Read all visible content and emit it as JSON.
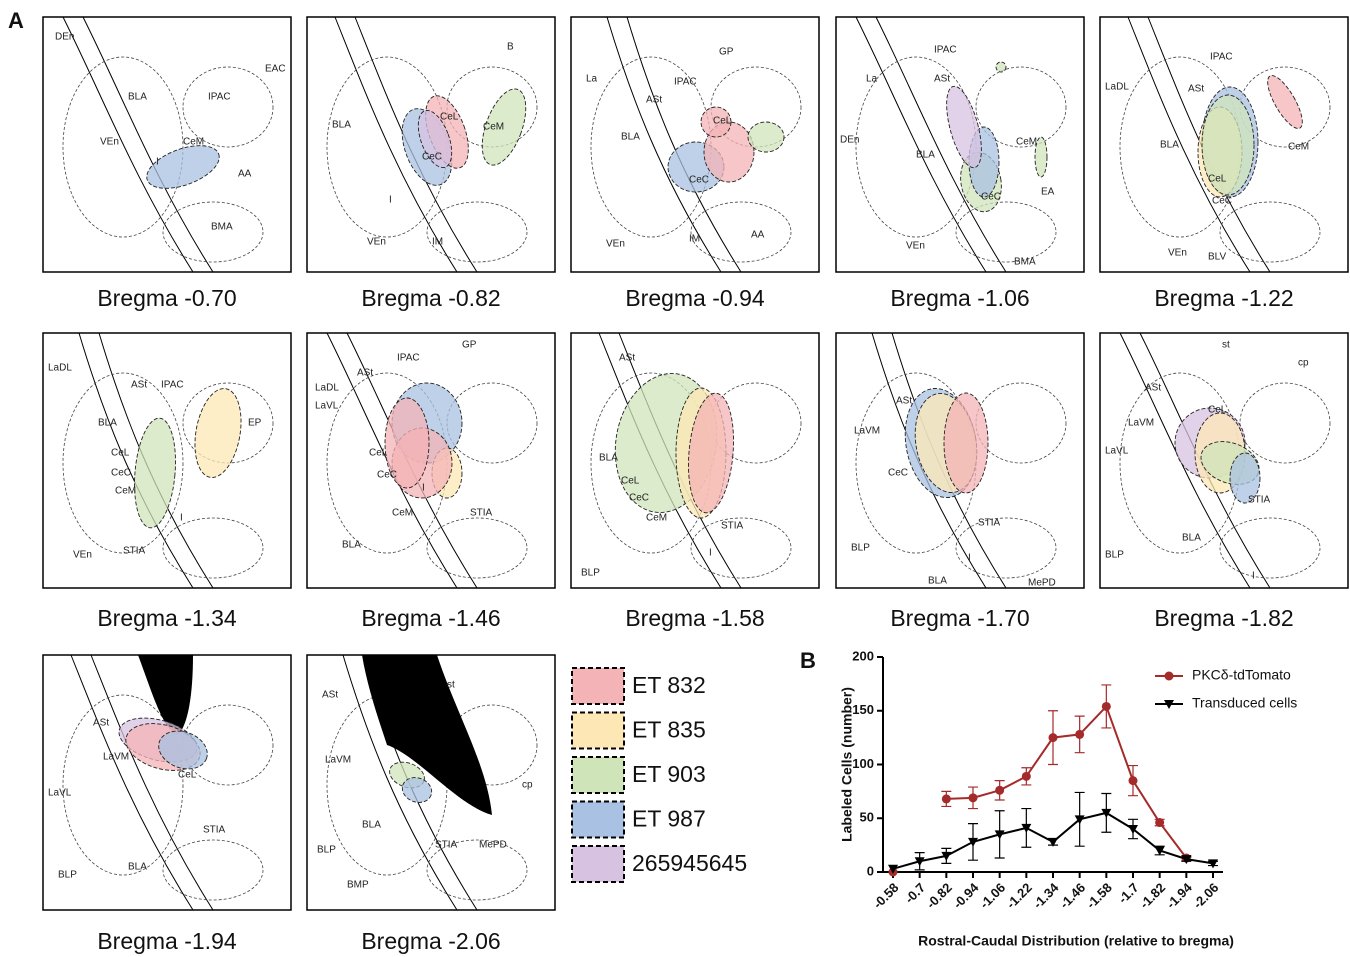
{
  "figure": {
    "panel_a_label": "A",
    "panel_b_label": "B",
    "sections": [
      {
        "caption": "Bregma -0.70",
        "labels": [
          "DEn",
          "BLA",
          "IPAC",
          "EAC",
          "VEn",
          "CeM",
          "I",
          "AA",
          "BMA"
        ]
      },
      {
        "caption": "Bregma -0.82",
        "labels": [
          "B",
          "BLA",
          "CeL",
          "CeM",
          "CeC",
          "VEn",
          "IM",
          "I"
        ]
      },
      {
        "caption": "Bregma -0.94",
        "labels": [
          "GP",
          "La",
          "IPAC",
          "ASt",
          "CeL",
          "BLA",
          "CeC",
          "VEn",
          "IM",
          "AA"
        ]
      },
      {
        "caption": "Bregma -1.06",
        "labels": [
          "IPAC",
          "La",
          "ASt",
          "DEn",
          "BLA",
          "CeM",
          "CeC",
          "EA",
          "VEn",
          "BMA"
        ]
      },
      {
        "caption": "Bregma -1.22",
        "labels": [
          "IPAC",
          "LaDL",
          "ASt",
          "BLA",
          "CeM",
          "CeL",
          "CeC",
          "VEn",
          "BLV"
        ]
      },
      {
        "caption": "Bregma -1.34",
        "labels": [
          "LaDL",
          "ASt",
          "IPAC",
          "EP",
          "BLA",
          "CeL",
          "CeC",
          "CeM",
          "I",
          "VEn",
          "STIA"
        ]
      },
      {
        "caption": "Bregma -1.46",
        "labels": [
          "GP",
          "IPAC",
          "ASt",
          "LaDL",
          "LaVL",
          "CeL",
          "CeC",
          "CeM",
          "I",
          "BLA",
          "STIA"
        ]
      },
      {
        "caption": "Bregma -1.58",
        "labels": [
          "ASt",
          "BLA",
          "CeL",
          "CeC",
          "CeM",
          "STIA",
          "I",
          "BLP"
        ]
      },
      {
        "caption": "Bregma -1.70",
        "labels": [
          "ASt",
          "LaVM",
          "CeC",
          "STIA",
          "BLP",
          "BLA",
          "I",
          "MePD"
        ]
      },
      {
        "caption": "Bregma -1.82",
        "labels": [
          "st",
          "cp",
          "ASt",
          "LaVM",
          "LaVL",
          "CeL",
          "STIA",
          "BLA",
          "BLP",
          "I"
        ]
      },
      {
        "caption": "Bregma -1.94",
        "labels": [
          "ASt",
          "LaVM",
          "LaVL",
          "CeL",
          "STIA",
          "BLP",
          "BLA"
        ]
      },
      {
        "caption": "Bregma -2.06",
        "labels": [
          "ASt",
          "st",
          "LaVM",
          "cp",
          "BLA",
          "STIA",
          "BLP",
          "MePD",
          "BMP"
        ]
      }
    ],
    "legend": [
      {
        "name": "ET 832",
        "color": "#f4b3b6"
      },
      {
        "name": "ET 835",
        "color": "#fde8b5"
      },
      {
        "name": "ET 903",
        "color": "#cfe4b9"
      },
      {
        "name": "ET 987",
        "color": "#a9c1e2"
      },
      {
        "name": "265945645",
        "color": "#d7c2e2"
      }
    ]
  },
  "chart_data": {
    "type": "line",
    "x_label": "Rostral-Caudal Distribution (relative to bregma)",
    "y_label": "Labeled Cells (number)",
    "categories": [
      "-0.58",
      "-0.7",
      "-0.82",
      "-0.94",
      "-1.06",
      "-1.22",
      "-1.34",
      "-1.46",
      "-1.58",
      "-1.7",
      "-1.82",
      "-1.94",
      "-2.06"
    ],
    "ylim": [
      0,
      200
    ],
    "yticks": [
      0,
      50,
      100,
      150,
      200
    ],
    "series": [
      {
        "name": "PKCδ-tdTomato",
        "color": "#a52a2a",
        "marker": "circle",
        "values": [
          0,
          null,
          68,
          69,
          76,
          89,
          125,
          128,
          154,
          85,
          46,
          13,
          null
        ],
        "errors": [
          null,
          null,
          7,
          10,
          9,
          8,
          25,
          17,
          20,
          14,
          3,
          2,
          null
        ]
      },
      {
        "name": "Transduced cells",
        "color": "#000000",
        "marker": "triangle-down",
        "values": [
          3,
          10,
          15,
          28,
          35,
          41,
          28,
          49,
          55,
          40,
          20,
          12,
          8
        ],
        "errors": [
          null,
          8,
          7,
          17,
          22,
          18,
          3,
          25,
          18,
          9,
          4,
          2,
          2
        ]
      }
    ]
  }
}
